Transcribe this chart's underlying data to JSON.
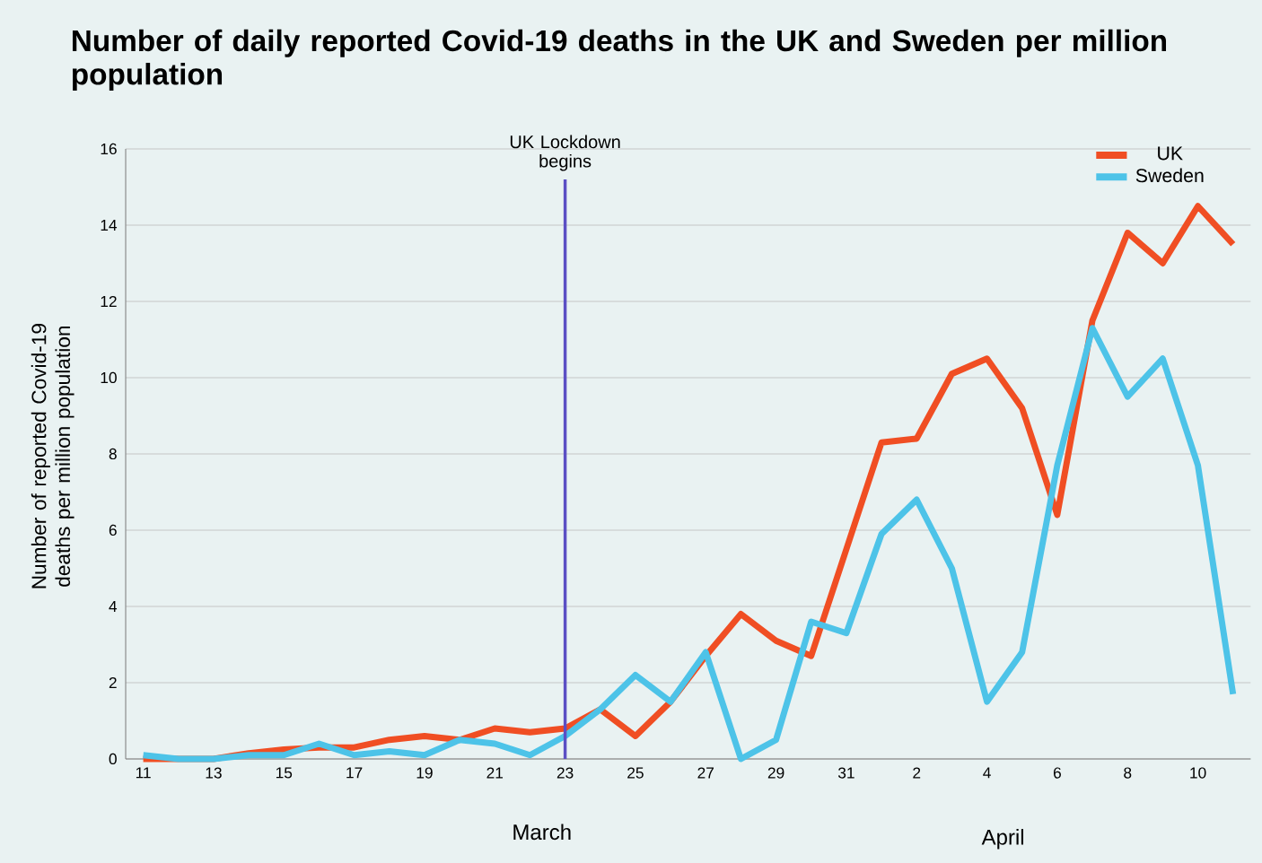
{
  "chart_data": {
    "type": "line",
    "title": "Number of daily reported Covid-19 deaths in the UK and Sweden per million population",
    "ylabel": "Number of reported Covid-19 deaths per million population",
    "categories": [
      "11",
      null,
      "13",
      null,
      "15",
      null,
      "17",
      null,
      "19",
      null,
      "21",
      null,
      "23",
      null,
      "25",
      null,
      "27",
      null,
      "29",
      null,
      "31",
      null,
      "2",
      null,
      "4",
      null,
      "6",
      null,
      "8",
      null,
      "10",
      null
    ],
    "series": [
      {
        "name": "UK",
        "color": "#f04e23",
        "values": [
          0,
          0,
          0,
          0.15,
          0.25,
          0.3,
          0.3,
          0.5,
          0.6,
          0.5,
          0.8,
          0.7,
          0.8,
          1.3,
          0.6,
          1.5,
          2.7,
          3.8,
          3.1,
          2.7,
          5.5,
          8.3,
          8.4,
          10.1,
          10.5,
          9.2,
          6.4,
          11.5,
          13.8,
          13.0,
          14.5,
          13.5
        ]
      },
      {
        "name": "Sweden",
        "color": "#4dc3e8",
        "values": [
          0.1,
          0,
          0,
          0.1,
          0.1,
          0.4,
          0.1,
          0.2,
          0.1,
          0.5,
          0.4,
          0.1,
          0.6,
          1.3,
          2.2,
          1.5,
          2.8,
          0,
          0.5,
          3.6,
          3.3,
          5.9,
          6.8,
          5.0,
          1.5,
          2.8,
          7.7,
          11.3,
          9.5,
          10.5,
          7.7,
          1.7
        ]
      }
    ],
    "ylim": [
      0,
      16
    ],
    "yticks": [
      0,
      2,
      4,
      6,
      8,
      10,
      12,
      14,
      16
    ],
    "grid": "y",
    "legend": "top right",
    "line_style": "solid",
    "marker": "none",
    "ref_lines": [
      {
        "axis": "x",
        "value": "23",
        "label": "UK Lockdown begins",
        "color": "#5b4fc4"
      }
    ],
    "annotations": [
      "March",
      "April"
    ]
  }
}
